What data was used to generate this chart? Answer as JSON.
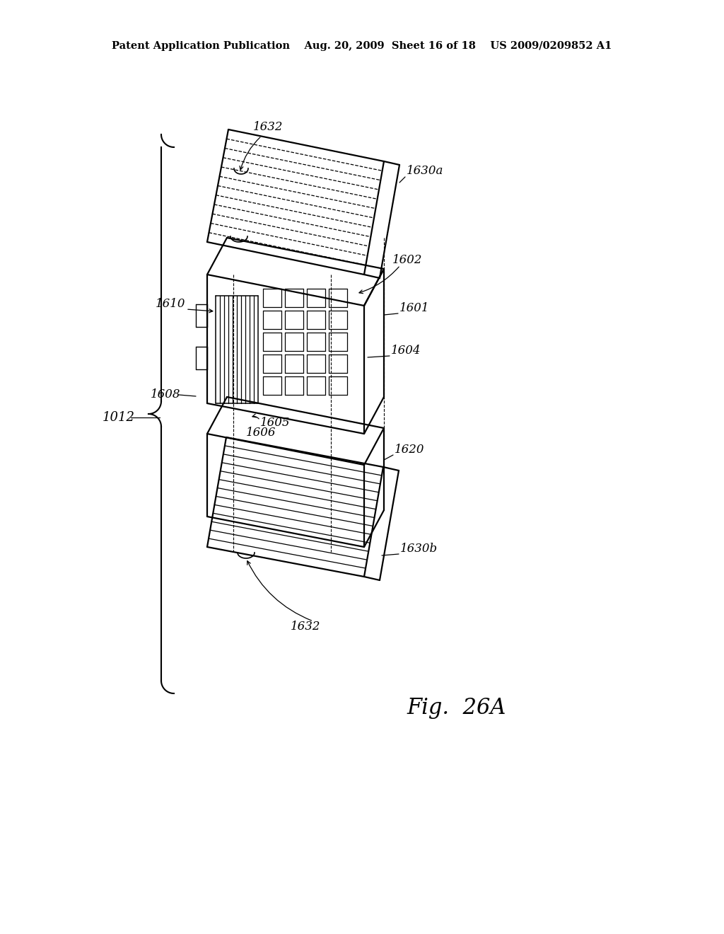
{
  "bg_color": "#ffffff",
  "header_text": "Patent Application Publication    Aug. 20, 2009  Sheet 16 of 18    US 2009/0209852 A1",
  "fig_label": "Fig.  26A",
  "label_1632_top": "1632",
  "label_1630a": "1630a",
  "label_1602": "1602",
  "label_1601": "1601",
  "label_1610": "1610",
  "label_1604": "1604",
  "label_1608": "1608",
  "label_1605": "1605",
  "label_1606": "1606",
  "label_1012": "1012",
  "label_1620": "1620",
  "label_1630b": "1630b",
  "label_1632_bot": "1632"
}
